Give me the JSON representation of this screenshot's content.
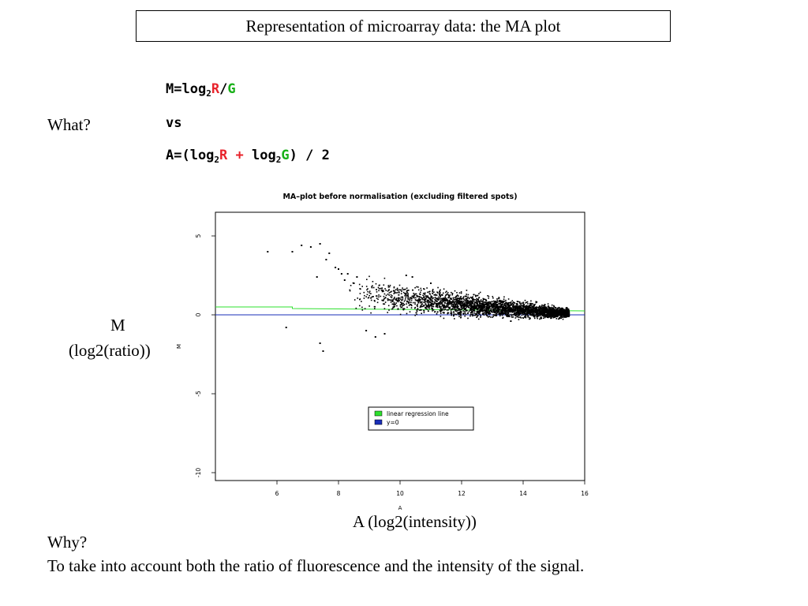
{
  "slide": {
    "title": "Representation of microarray data: the MA plot",
    "what_label": "What?",
    "formula": {
      "m_prefix": "M=log",
      "base": "2",
      "r": "R",
      "slash": "/",
      "g": "G",
      "vs": "vs",
      "a_prefix": "A=(log",
      "plus": "+",
      "log": "log",
      "a_suffix": ") / 2"
    },
    "y_axis_caption_line1": "M",
    "y_axis_caption_line2": "(log2(ratio))",
    "x_axis_caption": "A (log2(intensity))",
    "why_label": "Why?",
    "why_text": "To take into account both the ratio of fluorescence and the intensity of the signal."
  },
  "colors": {
    "red": "#e8232b",
    "green": "#18b018",
    "regression_line": "#2ee02e",
    "zero_line": "#1a2fb8"
  },
  "chart_data": {
    "type": "scatter",
    "title": "MA–plot before normalisation (excluding filtered spots)",
    "xlabel": "A",
    "ylabel": "M",
    "xlim": [
      4,
      16
    ],
    "ylim": [
      -10.5,
      6.5
    ],
    "xticks": [
      6,
      8,
      10,
      12,
      14,
      16
    ],
    "yticks": [
      5,
      0,
      -5,
      -10
    ],
    "legend": {
      "position": "bottom-right",
      "entries": [
        {
          "label": "linear regression line",
          "color": "#2ee02e"
        },
        {
          "label": "y=0",
          "color": "#1a2fb8"
        }
      ]
    },
    "lines": [
      {
        "name": "linear regression line",
        "color": "#2ee02e",
        "points": [
          [
            4,
            0.5
          ],
          [
            6.5,
            0.5
          ],
          [
            6.5,
            0.4
          ],
          [
            16,
            0.25
          ]
        ]
      },
      {
        "name": "y=0",
        "color": "#1a2fb8",
        "points": [
          [
            4,
            0
          ],
          [
            16,
            0
          ]
        ]
      }
    ],
    "points": [
      [
        5.7,
        4.0
      ],
      [
        6.5,
        4.0
      ],
      [
        6.8,
        4.4
      ],
      [
        7.1,
        4.3
      ],
      [
        7.4,
        4.5
      ],
      [
        7.7,
        3.9
      ],
      [
        7.6,
        3.5
      ],
      [
        7.9,
        3.0
      ],
      [
        8.1,
        2.6
      ],
      [
        8.0,
        2.9
      ],
      [
        8.3,
        2.6
      ],
      [
        7.3,
        2.4
      ],
      [
        8.2,
        2.2
      ],
      [
        8.5,
        2.0
      ],
      [
        8.6,
        2.4
      ],
      [
        6.3,
        -0.8
      ],
      [
        7.4,
        -1.8
      ],
      [
        7.5,
        -2.3
      ],
      [
        8.9,
        -1.0
      ],
      [
        9.2,
        -1.4
      ],
      [
        9.5,
        -1.2
      ],
      [
        10.2,
        2.5
      ],
      [
        10.4,
        2.4
      ],
      [
        12.8,
        0.9
      ],
      [
        13.6,
        -0.4
      ],
      [
        11.0,
        2.0
      ]
    ],
    "cloud": {
      "a_range": [
        8.3,
        15.5
      ],
      "m_center_start": 1.7,
      "m_center_end": 0.1,
      "m_spread_start": 0.9,
      "m_spread_end": 0.25,
      "count": 3200
    }
  }
}
